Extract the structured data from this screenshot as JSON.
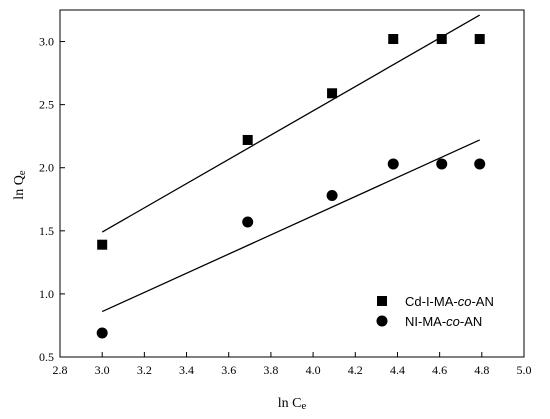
{
  "chart_data": {
    "type": "scatter",
    "xlabel": "ln C",
    "xlabel_sub": "e",
    "ylabel": "ln Q",
    "ylabel_sub": "e",
    "xlim": [
      2.8,
      5.0
    ],
    "ylim": [
      0.5,
      3.25
    ],
    "x_ticks": [
      2.8,
      3.0,
      3.2,
      3.4,
      3.6,
      3.8,
      4.0,
      4.2,
      4.4,
      4.6,
      4.8,
      5.0
    ],
    "x_tick_labels": [
      "2.8",
      "3.0",
      "3.2",
      "3.4",
      "3.6",
      "3.8",
      "4.0",
      "4.2",
      "4.4",
      "4.6",
      "4.8",
      "5.0"
    ],
    "y_ticks": [
      0.5,
      1.0,
      1.5,
      2.0,
      2.5,
      3.0
    ],
    "y_tick_labels": [
      "0.5",
      "1.0",
      "1.5",
      "2.0",
      "2.5",
      "3.0"
    ],
    "grid": false,
    "legend_position": "bottom-right",
    "series": [
      {
        "name_parts": [
          "Cd-I-MA-",
          "co",
          "-AN"
        ],
        "marker": "square",
        "color": "#000000",
        "x": [
          3.0,
          3.69,
          4.09,
          4.38,
          4.61,
          4.79
        ],
        "y": [
          1.39,
          2.22,
          2.59,
          3.02,
          3.02,
          3.02
        ],
        "fit_line": {
          "x": [
            3.0,
            4.79
          ],
          "y": [
            1.49,
            3.21
          ]
        }
      },
      {
        "name_parts": [
          "NI-MA-",
          "co",
          "-AN"
        ],
        "marker": "circle",
        "color": "#000000",
        "x": [
          3.0,
          3.69,
          4.09,
          4.38,
          4.61,
          4.79
        ],
        "y": [
          0.69,
          1.57,
          1.78,
          2.03,
          2.03,
          2.03
        ],
        "fit_line": {
          "x": [
            3.0,
            4.79
          ],
          "y": [
            0.86,
            2.22
          ]
        }
      }
    ]
  }
}
